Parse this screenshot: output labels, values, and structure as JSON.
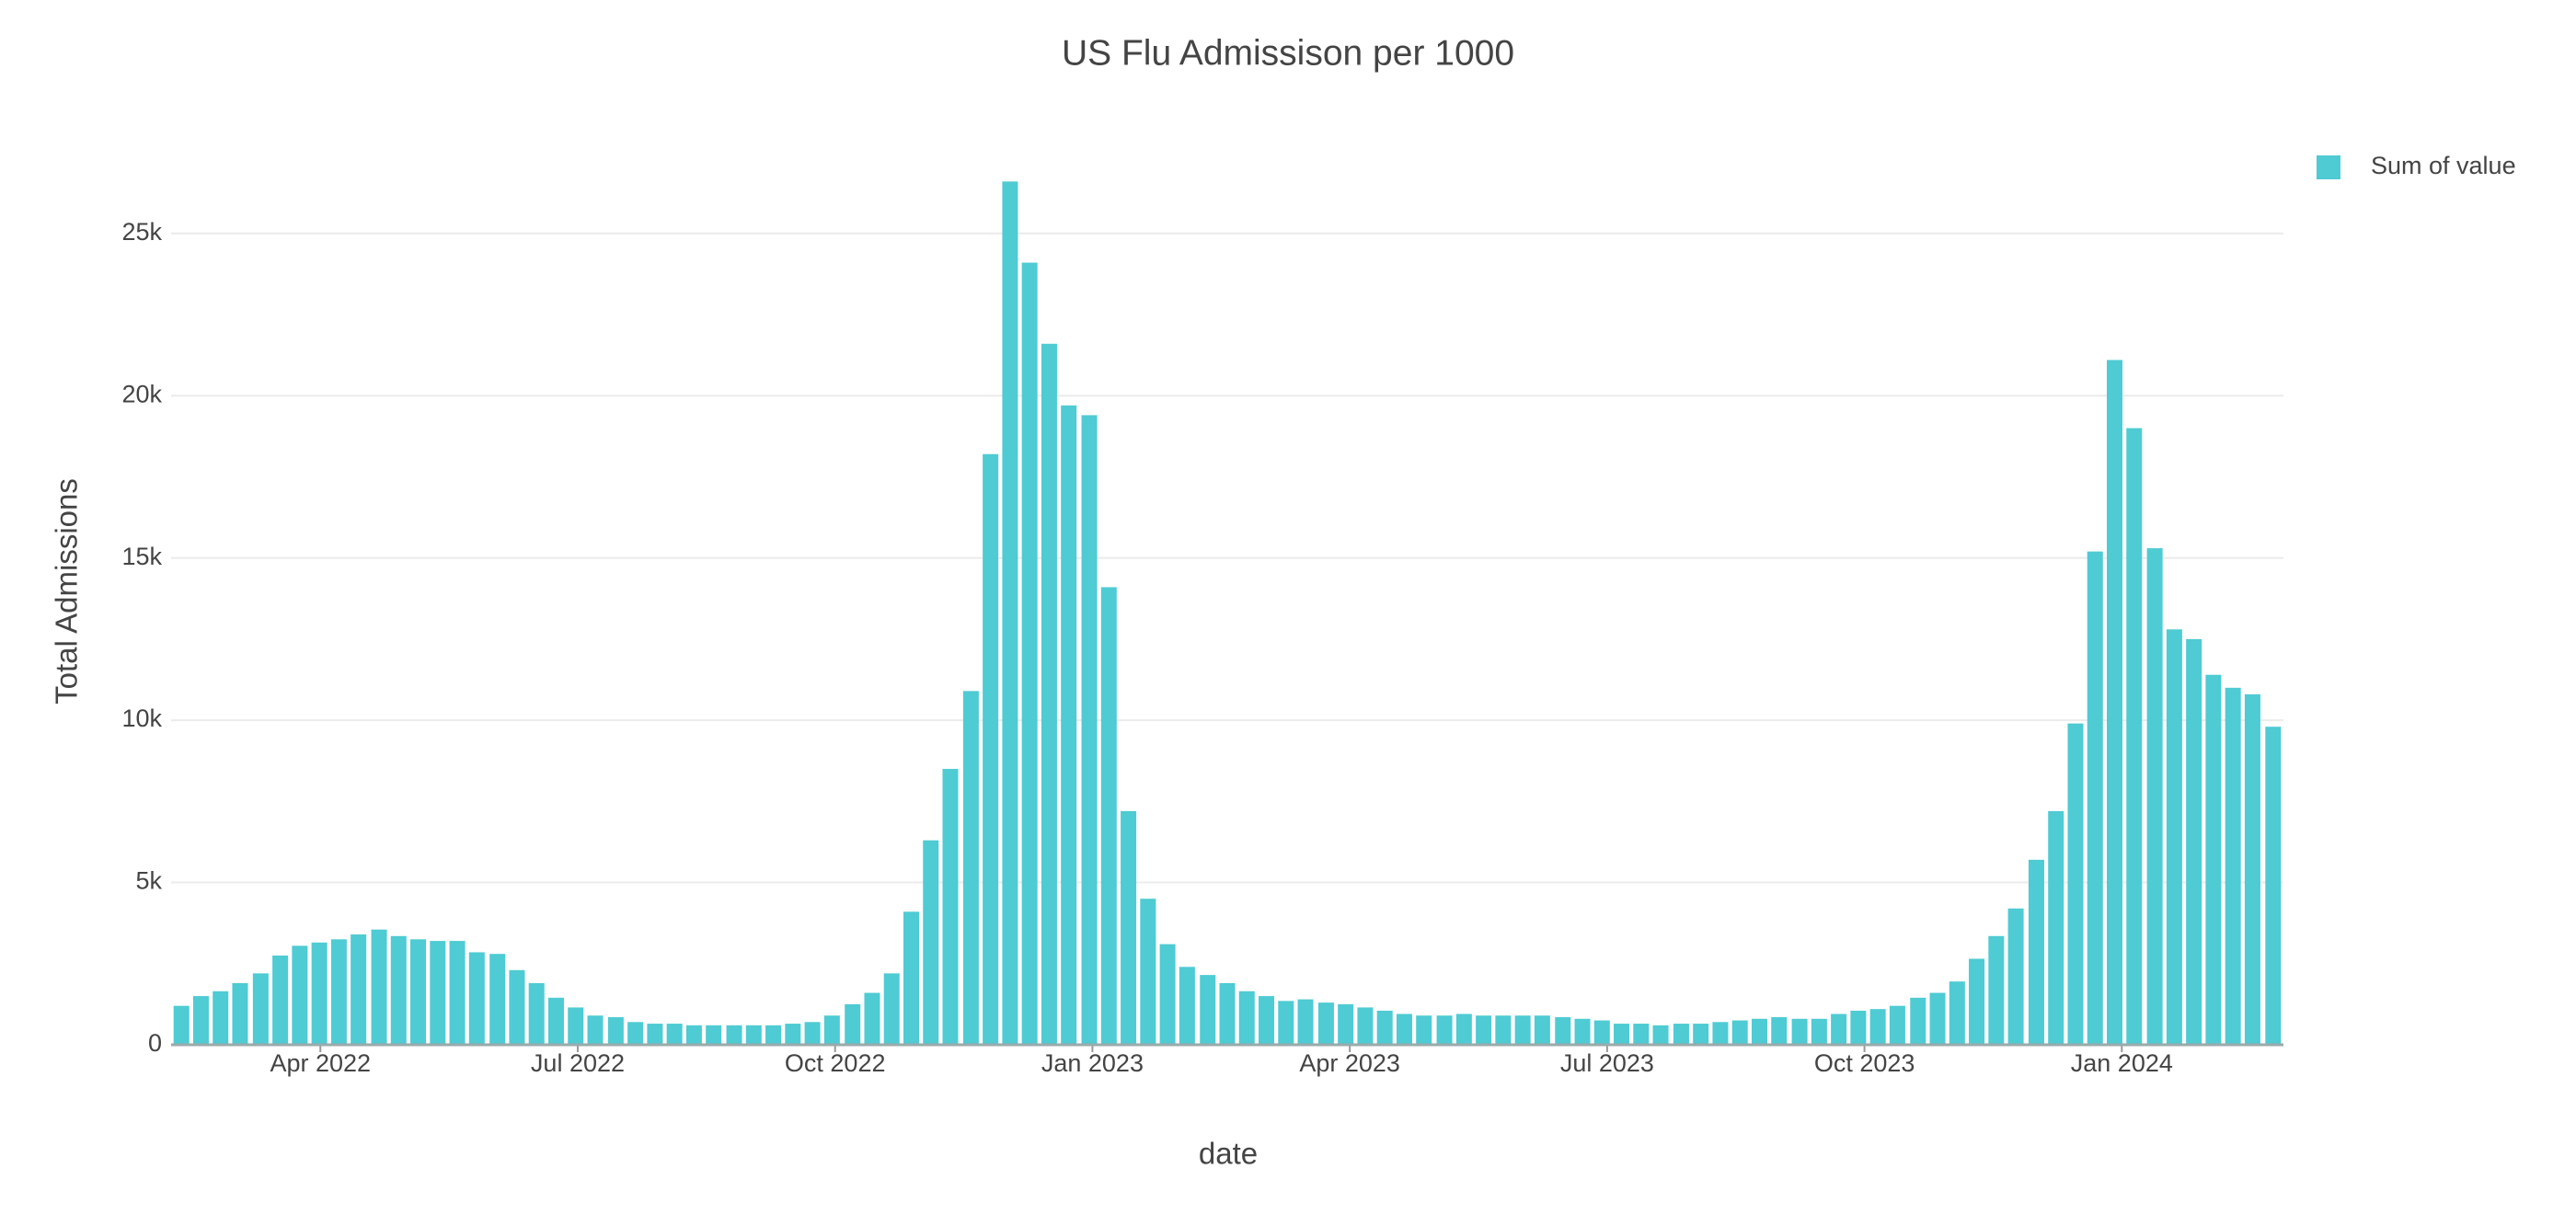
{
  "chart_data": {
    "type": "bar",
    "title": "US Flu Admissison per 1000",
    "x_label": "date",
    "y_label": "Total Admissions",
    "series": [
      {
        "name": "Sum of value",
        "color": "#4ecbd3",
        "values": [
          1200,
          1500,
          1650,
          1900,
          2200,
          2750,
          3050,
          3150,
          3250,
          3400,
          3550,
          3350,
          3250,
          3200,
          3200,
          2850,
          2800,
          2300,
          1900,
          1450,
          1150,
          900,
          850,
          700,
          650,
          650,
          600,
          600,
          600,
          600,
          600,
          650,
          700,
          900,
          1250,
          1600,
          2200,
          4100,
          6300,
          8500,
          10900,
          18200,
          26600,
          24100,
          21600,
          19700,
          19400,
          14100,
          7200,
          4500,
          3100,
          2400,
          2150,
          1900,
          1650,
          1500,
          1350,
          1400,
          1300,
          1250,
          1150,
          1050,
          950,
          900,
          900,
          950,
          900,
          900,
          900,
          900,
          850,
          800,
          750,
          650,
          650,
          600,
          650,
          650,
          700,
          750,
          800,
          850,
          800,
          800,
          950,
          1050,
          1100,
          1200,
          1450,
          1600,
          1950,
          2650,
          3350,
          4200,
          5700,
          7200,
          9900,
          15200,
          21100,
          19000,
          15300,
          12800,
          12500,
          11400,
          11000,
          10800,
          9800
        ]
      }
    ],
    "x": [
      2022.115,
      2022.134,
      2022.153,
      2022.172,
      2022.192,
      2022.211,
      2022.23,
      2022.249,
      2022.268,
      2022.287,
      2022.307,
      2022.326,
      2022.345,
      2022.364,
      2022.383,
      2022.402,
      2022.422,
      2022.441,
      2022.46,
      2022.479,
      2022.498,
      2022.517,
      2022.537,
      2022.556,
      2022.575,
      2022.594,
      2022.613,
      2022.632,
      2022.652,
      2022.671,
      2022.69,
      2022.709,
      2022.728,
      2022.747,
      2022.767,
      2022.786,
      2022.805,
      2022.824,
      2022.843,
      2022.862,
      2022.882,
      2022.901,
      2022.92,
      2022.939,
      2022.958,
      2022.977,
      2022.997,
      2023.016,
      2023.035,
      2023.054,
      2023.073,
      2023.092,
      2023.112,
      2023.131,
      2023.15,
      2023.169,
      2023.188,
      2023.207,
      2023.227,
      2023.246,
      2023.265,
      2023.284,
      2023.303,
      2023.322,
      2023.342,
      2023.361,
      2023.38,
      2023.399,
      2023.418,
      2023.437,
      2023.457,
      2023.476,
      2023.495,
      2023.514,
      2023.533,
      2023.552,
      2023.572,
      2023.591,
      2023.61,
      2023.629,
      2023.648,
      2023.667,
      2023.687,
      2023.706,
      2023.725,
      2023.744,
      2023.763,
      2023.782,
      2023.802,
      2023.821,
      2023.84,
      2023.859,
      2023.878,
      2023.897,
      2023.917,
      2023.936,
      2023.955,
      2023.974,
      2023.993,
      2024.012,
      2024.032,
      2024.051,
      2024.07,
      2024.089,
      2024.108,
      2024.127,
      2024.147
    ],
    "xlim": [
      2022.105,
      2024.157
    ],
    "xticks": [
      {
        "value": 2022.25,
        "label": "Apr 2022"
      },
      {
        "value": 2022.5,
        "label": "Jul 2022"
      },
      {
        "value": 2022.75,
        "label": "Oct 2022"
      },
      {
        "value": 2023.0,
        "label": "Jan 2023"
      },
      {
        "value": 2023.25,
        "label": "Apr 2023"
      },
      {
        "value": 2023.5,
        "label": "Jul 2023"
      },
      {
        "value": 2023.75,
        "label": "Oct 2023"
      },
      {
        "value": 2024.0,
        "label": "Jan 2024"
      }
    ],
    "ylim": [
      0,
      27800
    ],
    "yticks": [
      0,
      {
        "value": 5000,
        "label": "5k"
      },
      {
        "value": 10000,
        "label": "10k"
      },
      {
        "value": 15000,
        "label": "15k"
      },
      {
        "value": 20000,
        "label": "20k"
      },
      {
        "value": 25000,
        "label": "25k"
      }
    ],
    "grid": true,
    "legend": "top-right"
  }
}
